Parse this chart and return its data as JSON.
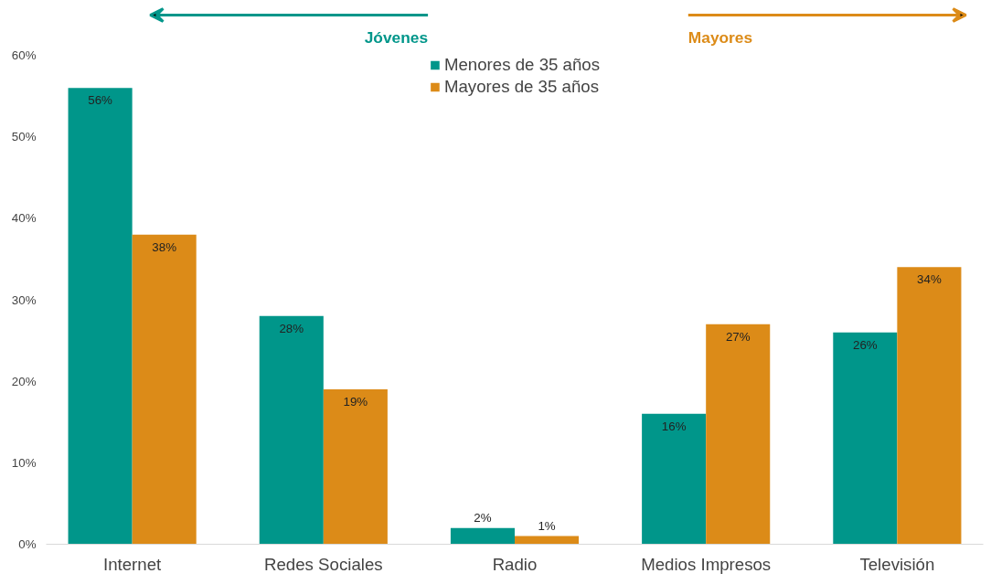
{
  "chart_data": {
    "type": "bar",
    "categories": [
      "Internet",
      "Redes Sociales",
      "Radio",
      "Medios Impresos",
      "Televisión"
    ],
    "series": [
      {
        "name": "Menores de 35 años",
        "color": "#00968a",
        "values": [
          56,
          28,
          2,
          16,
          26
        ],
        "value_labels": [
          "56%",
          "28%",
          "2%",
          "16%",
          "26%"
        ]
      },
      {
        "name": "Mayores de 35 años",
        "color": "#dc8b18",
        "values": [
          38,
          19,
          1,
          27,
          34
        ],
        "value_labels": [
          "38%",
          "19%",
          "1%",
          "27%",
          "34%"
        ]
      }
    ],
    "ylim": [
      0,
      60
    ],
    "yticks": [
      {
        "value": 0,
        "label": "0%"
      },
      {
        "value": 10,
        "label": "10%"
      },
      {
        "value": 20,
        "label": "20%"
      },
      {
        "value": 30,
        "label": "30%"
      },
      {
        "value": 40,
        "label": "40%"
      },
      {
        "value": 50,
        "label": "50%"
      },
      {
        "value": 60,
        "label": "60%"
      }
    ],
    "annotations": [
      "Jóvenes",
      "Mayores"
    ],
    "grid": false,
    "legend": "top"
  }
}
